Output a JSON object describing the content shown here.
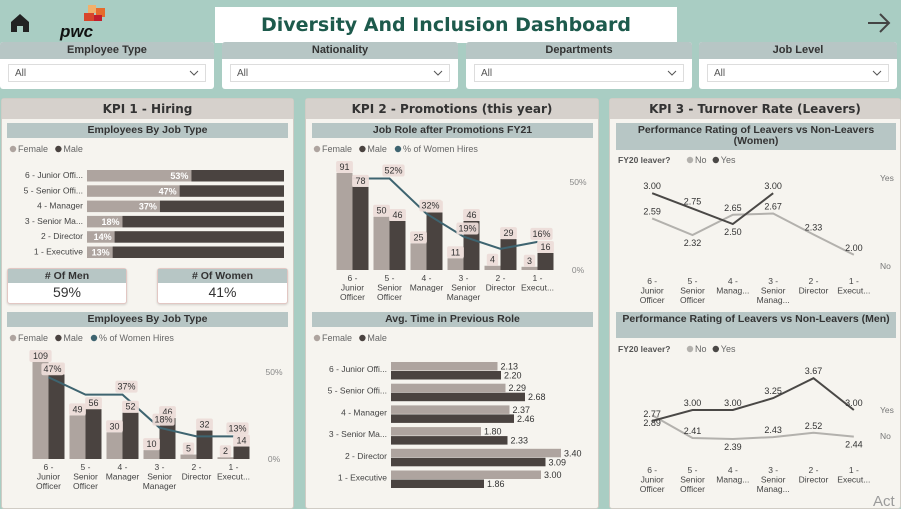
{
  "header": {
    "title": "Diversity And Inclusion Dashboard",
    "logo_text": "pwc"
  },
  "filters": [
    {
      "label": "Employee Type",
      "value": "All"
    },
    {
      "label": "Nationality",
      "value": "All"
    },
    {
      "label": "Departments",
      "value": "All"
    },
    {
      "label": "Job Level",
      "value": "All"
    }
  ],
  "kpi1": {
    "title": "KPI 1 - Hiring",
    "chart1": {
      "title": "Employees By Job Type",
      "legend": [
        "Female",
        "Male"
      ],
      "rows": [
        {
          "label": "6 - Junior Offi...",
          "female_pct": 53
        },
        {
          "label": "5 - Senior Offi...",
          "female_pct": 47
        },
        {
          "label": "4 - Manager",
          "female_pct": 37
        },
        {
          "label": "3 - Senior Ma...",
          "female_pct": 18
        },
        {
          "label": "2 - Director",
          "female_pct": 14
        },
        {
          "label": "1 - Executive",
          "female_pct": 13
        }
      ]
    },
    "men_card": {
      "label": "# Of Men",
      "value": "59%"
    },
    "women_card": {
      "label": "# Of Women",
      "value": "41%"
    },
    "chart2": {
      "title": "Employees By Job Type",
      "legend": [
        "Female",
        "Male",
        "% of Women Hires"
      ],
      "axis_right": [
        "50%",
        "0%"
      ],
      "categories": [
        "6 - Junior Officer",
        "5 - Senior Officer",
        "4 - Manager",
        "3 - Senior Manager",
        "2 - Director",
        "1 - Execut..."
      ],
      "female": [
        109,
        49,
        30,
        10,
        5,
        2
      ],
      "male": [
        95,
        56,
        52,
        46,
        32,
        14
      ],
      "pct_women": [
        47,
        37,
        37,
        18,
        13,
        13
      ],
      "pct_labels": [
        "47%",
        "",
        "37%",
        "18%",
        "",
        "13%"
      ]
    }
  },
  "kpi2": {
    "title": "KPI 2 - Promotions (this year)",
    "chart1": {
      "title": "Job Role after Promotions FY21",
      "legend": [
        "Female",
        "Male",
        "% of Women Hires"
      ],
      "axis_right": [
        "50%",
        "0%"
      ],
      "categories": [
        "6 - Junior Officer",
        "5 - Senior Officer",
        "4 - Manager",
        "3 - Senior Manager",
        "2 - Director",
        "1 - Execut..."
      ],
      "female": [
        91,
        50,
        25,
        11,
        4,
        3
      ],
      "male": [
        78,
        46,
        54,
        46,
        29,
        16
      ],
      "pct_women": [
        52,
        52,
        32,
        19,
        12,
        16
      ],
      "pct_labels": [
        "",
        "52%",
        "32%",
        "19%",
        "",
        "16%"
      ]
    },
    "chart2": {
      "title": "Avg. Time in Previous Role",
      "legend": [
        "Female",
        "Male"
      ],
      "rows": [
        {
          "label": "6 - Junior Offi...",
          "female": 2.13,
          "male": 2.2
        },
        {
          "label": "5 - Senior Offi...",
          "female": 2.29,
          "male": 2.68
        },
        {
          "label": "4 - Manager",
          "female": 2.37,
          "male": 2.46
        },
        {
          "label": "3 - Senior Ma...",
          "female": 1.8,
          "male": 2.33
        },
        {
          "label": "2 - Director",
          "female": 3.4,
          "male": 3.09
        },
        {
          "label": "1 - Executive",
          "female": 3.0,
          "male": 1.86
        }
      ]
    }
  },
  "kpi3": {
    "title": "KPI 3 - Turnover Rate (Leavers)",
    "chart1": {
      "title": "Performance Rating of Leavers vs Non-Leavers (Women)",
      "legend_title": "FY20 leaver?",
      "legend": [
        "No",
        "Yes"
      ],
      "categories": [
        "6 - Junior Officer",
        "5 - Senior Officer",
        "4 - Manag...",
        "3 - Senior Manag...",
        "2 - Director",
        "1 - Execut..."
      ],
      "no": [
        2.59,
        2.32,
        2.65,
        2.67,
        2.33,
        2.0
      ],
      "yes": [
        3.0,
        2.75,
        2.5,
        3.0,
        null,
        null
      ],
      "ylim": [
        1.85,
        3.15
      ],
      "end_labels": [
        "Yes",
        "No"
      ]
    },
    "chart2": {
      "title": "Performance Rating of Leavers vs Non-Leavers (Men)",
      "legend_title": "FY20 leaver?",
      "legend": [
        "No",
        "Yes"
      ],
      "categories": [
        "6 - Junior Officer",
        "5 - Senior Officer",
        "4 - Manag...",
        "3 - Senior Manag...",
        "2 - Director",
        "1 - Execut..."
      ],
      "no": [
        2.89,
        2.41,
        2.39,
        2.43,
        2.52,
        2.44
      ],
      "yes": [
        2.77,
        3.0,
        3.0,
        3.25,
        3.67,
        3.0
      ],
      "ylim": [
        2.2,
        3.8
      ],
      "end_labels": [
        "Yes",
        "No"
      ]
    }
  },
  "colors": {
    "female": "#aea49f",
    "male": "#4a4340",
    "line": "#3e6470",
    "teal": "#1d5a4c",
    "yes_line": "#4a4846",
    "no_line": "#b3b1ad",
    "bg": "#a9cdc3"
  },
  "watermark": "Act"
}
